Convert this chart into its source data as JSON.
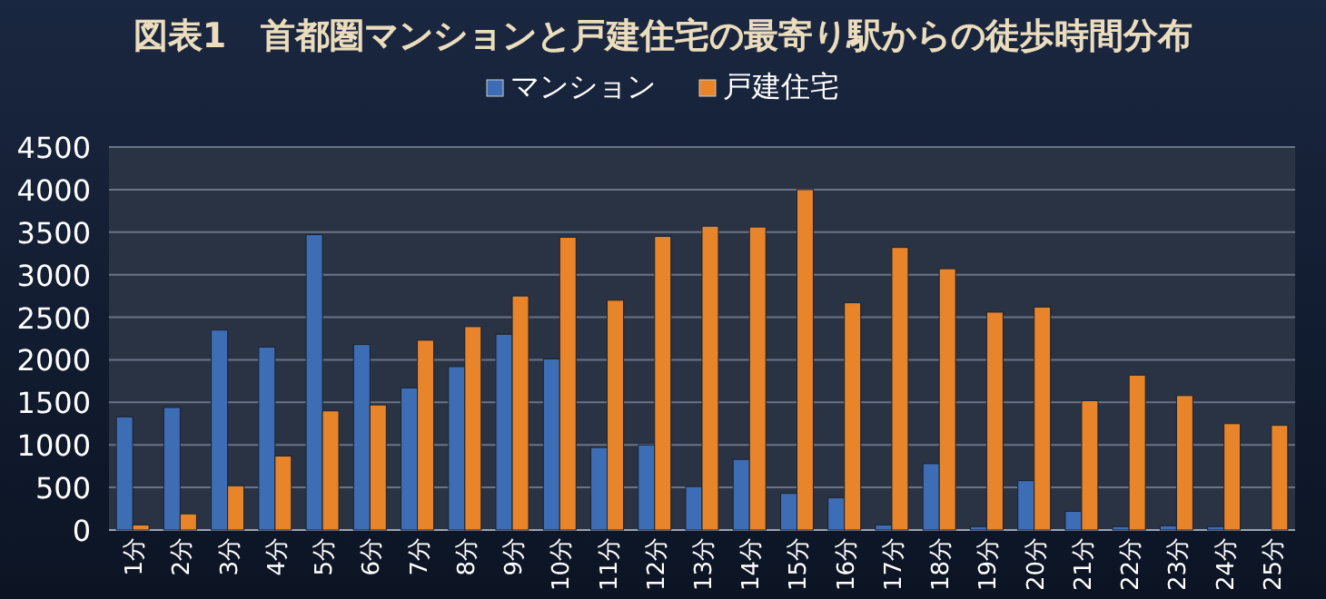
{
  "chart_data": {
    "type": "bar",
    "title": "図表1　首都圏マンションと戸建住宅の最寄り駅からの徒歩時間分布",
    "categories": [
      "1分",
      "2分",
      "3分",
      "4分",
      "5分",
      "6分",
      "7分",
      "8分",
      "9分",
      "10分",
      "11分",
      "12分",
      "13分",
      "14分",
      "15分",
      "16分",
      "17分",
      "18分",
      "19分",
      "20分",
      "21分",
      "22分",
      "23分",
      "24分",
      "25分"
    ],
    "series": [
      {
        "name": "マンション",
        "color": "#3d6db5",
        "values": [
          1330,
          1440,
          2350,
          2150,
          3470,
          2180,
          1670,
          1920,
          2300,
          2010,
          970,
          1000,
          510,
          830,
          430,
          380,
          60,
          780,
          40,
          580,
          220,
          40,
          50,
          40,
          0
        ]
      },
      {
        "name": "戸建住宅",
        "color": "#e8842a",
        "values": [
          60,
          190,
          520,
          870,
          1400,
          1470,
          2230,
          2390,
          2750,
          3440,
          2700,
          3450,
          3570,
          3560,
          4000,
          2670,
          3320,
          3070,
          2560,
          2620,
          1520,
          1820,
          1580,
          1250,
          1230
        ]
      }
    ],
    "ylim": [
      0,
      4500
    ],
    "yticks": [
      0,
      500,
      1000,
      1500,
      2000,
      2500,
      3000,
      3500,
      4000,
      4500
    ],
    "grid": "y",
    "legend": "top"
  }
}
